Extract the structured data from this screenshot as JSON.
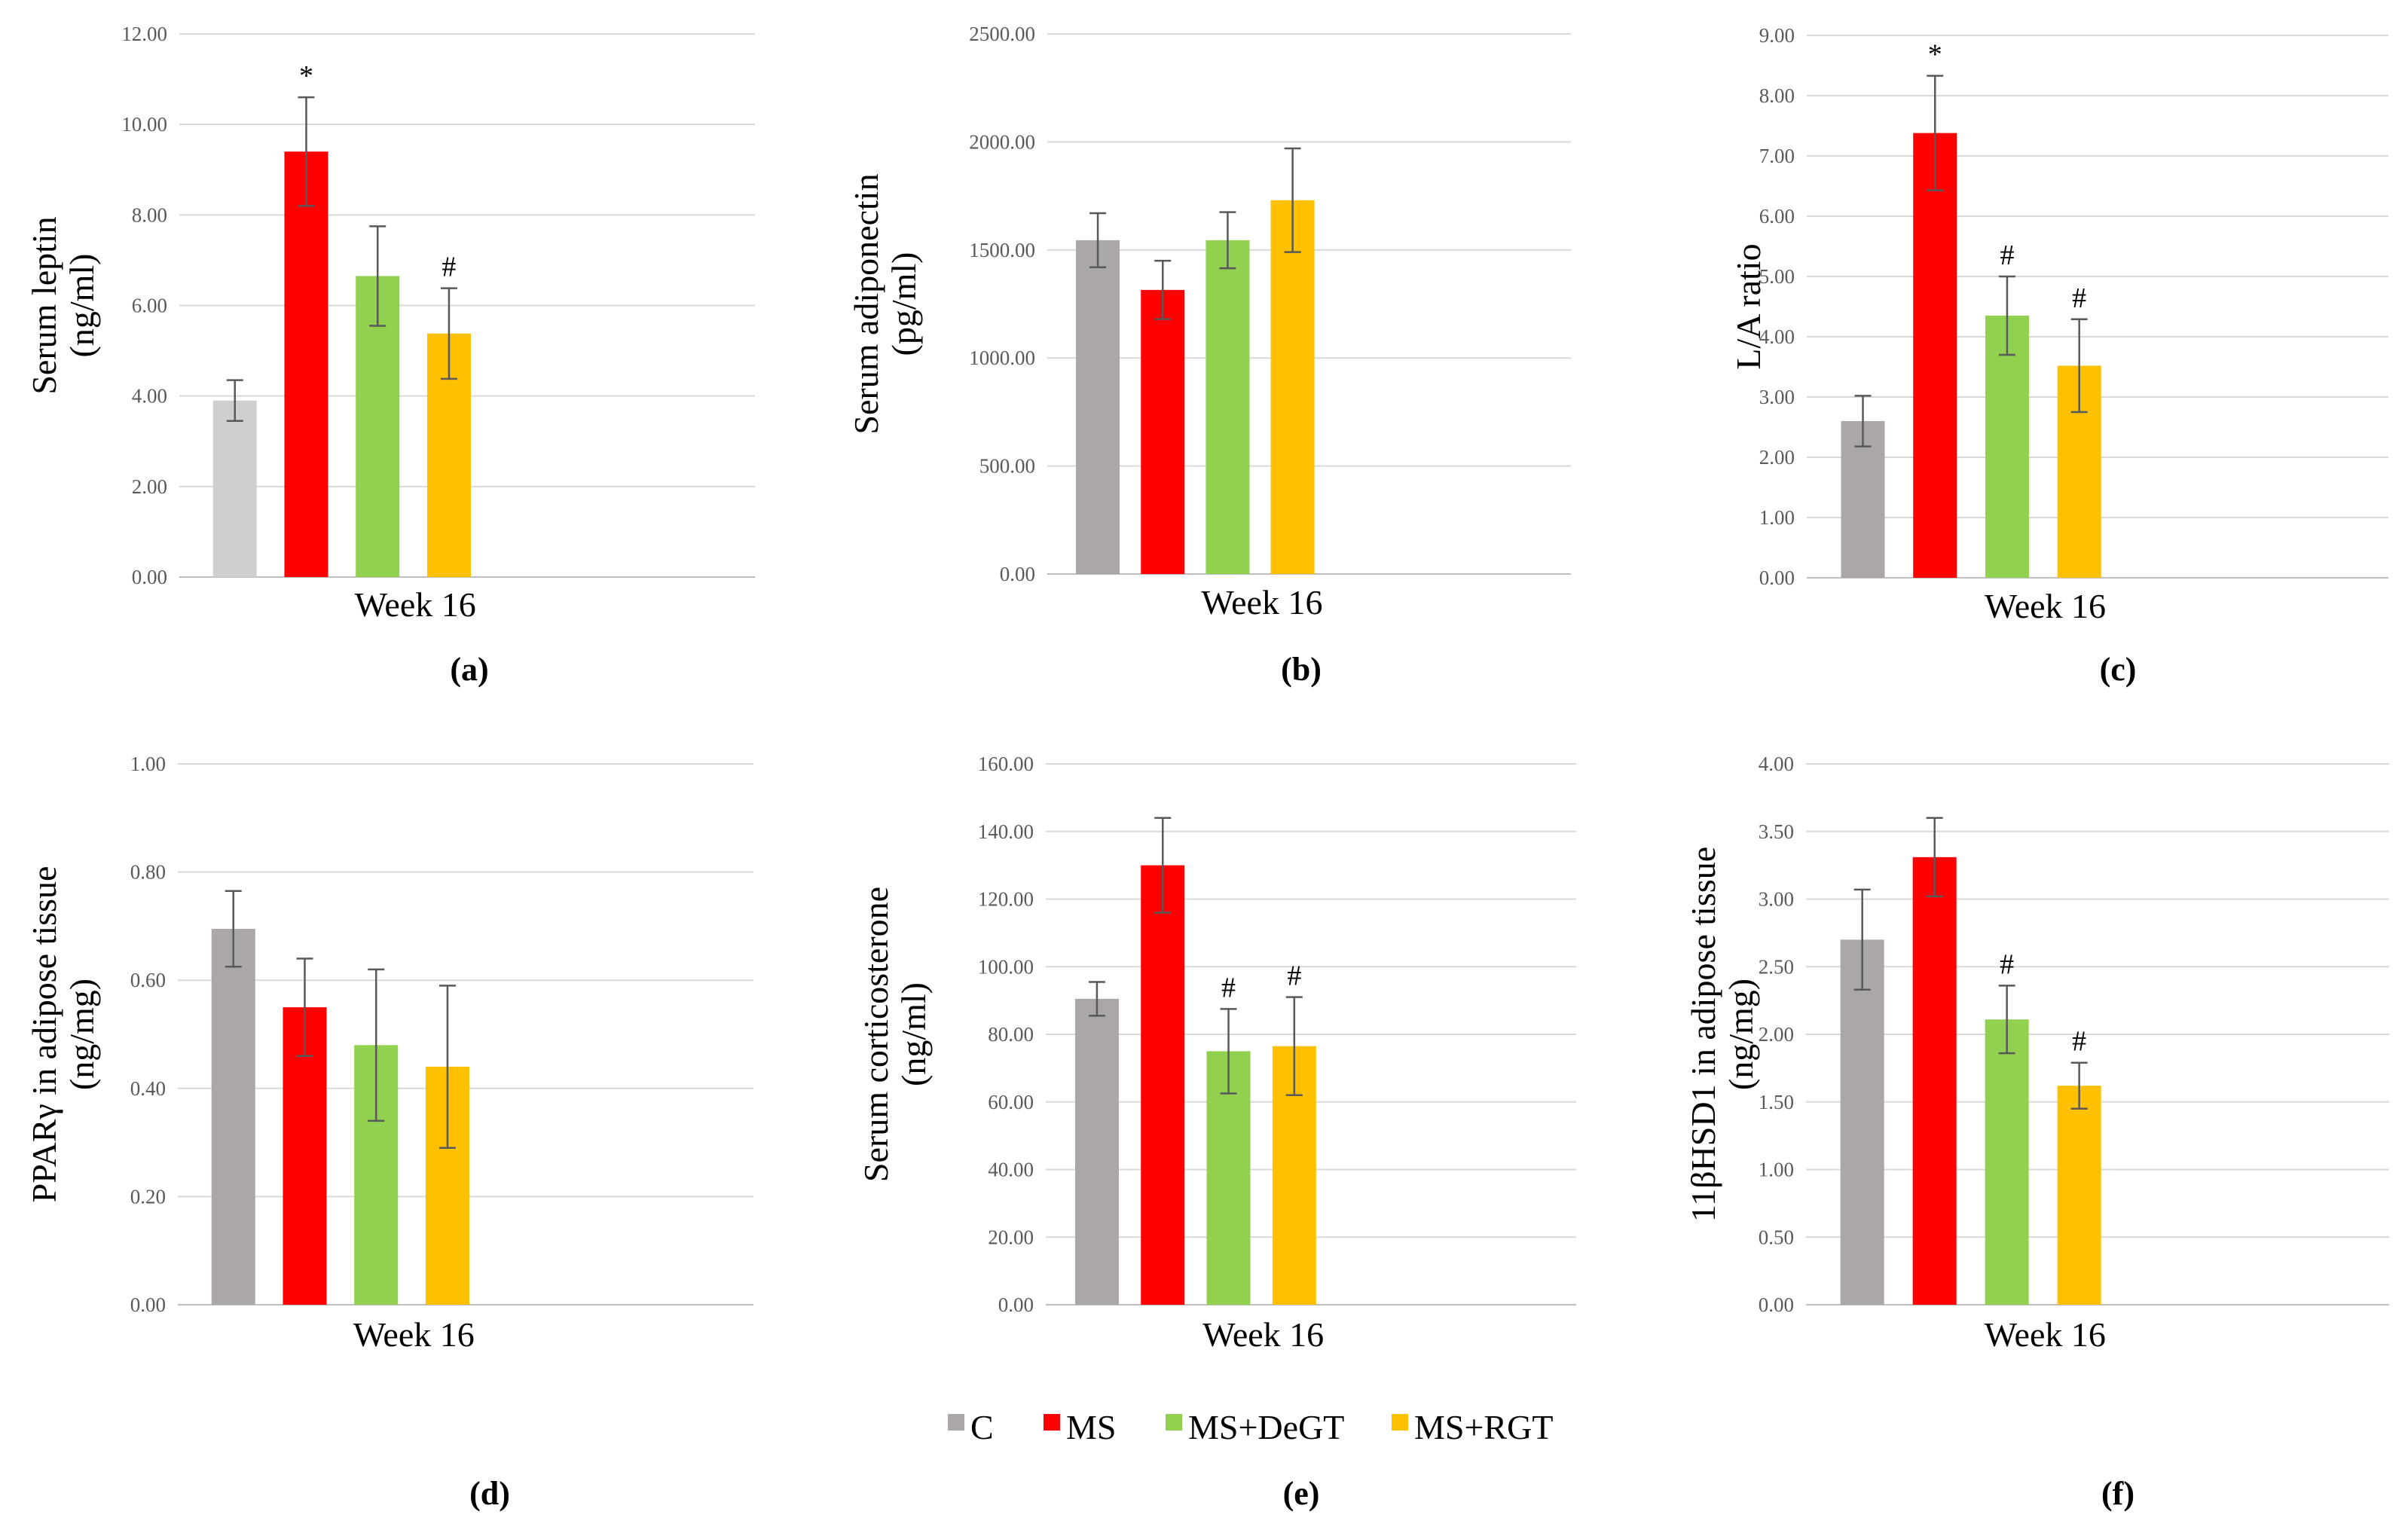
{
  "legend": {
    "items": [
      {
        "label": "C",
        "color": "#aba7a7"
      },
      {
        "label": "MS",
        "color": "#ff0000"
      },
      {
        "label": "MS+DeGT",
        "color": "#92d050"
      },
      {
        "label": "MS+RGT",
        "color": "#ffc000"
      }
    ]
  },
  "chart_data": [
    {
      "panel": "(a)",
      "type": "bar",
      "xlabel": "Week 16",
      "ylabel": [
        "Serum leptin",
        "(ng/ml)"
      ],
      "ylim": [
        0,
        12
      ],
      "yticks": [
        "0.00",
        "2.00",
        "4.00",
        "6.00",
        "8.00",
        "10.00",
        "12.00"
      ],
      "bar_colors": [
        "#d0cece",
        "#ff0000",
        "#92d050",
        "#ffc000"
      ],
      "series": [
        {
          "name": "C",
          "value": 3.9,
          "error": 0.45,
          "sig": ""
        },
        {
          "name": "MS",
          "value": 9.4,
          "error": 1.2,
          "sig": "*"
        },
        {
          "name": "MS+DeGT",
          "value": 6.65,
          "error": 1.1,
          "sig": ""
        },
        {
          "name": "MS+RGT",
          "value": 5.38,
          "error": 1.0,
          "sig": "#"
        }
      ]
    },
    {
      "panel": "(b)",
      "type": "bar",
      "xlabel": "Week 16",
      "ylabel": [
        "Serum adiponectin",
        "(pg/ml)"
      ],
      "ylim": [
        0,
        2500
      ],
      "yticks": [
        "0.00",
        "500.00",
        "1000.00",
        "1500.00",
        "2000.00",
        "2500.00"
      ],
      "bar_colors": [
        "#aba7a7",
        "#ff0000",
        "#92d050",
        "#ffc000"
      ],
      "series": [
        {
          "name": "C",
          "value": 1545,
          "error": 125,
          "sig": ""
        },
        {
          "name": "MS",
          "value": 1315,
          "error": 135,
          "sig": ""
        },
        {
          "name": "MS+DeGT",
          "value": 1545,
          "error": 130,
          "sig": ""
        },
        {
          "name": "MS+RGT",
          "value": 1730,
          "error": 240,
          "sig": ""
        }
      ]
    },
    {
      "panel": "(c)",
      "type": "bar",
      "xlabel": "Week 16",
      "ylabel": [
        "L/A ratio"
      ],
      "ylim": [
        0,
        9
      ],
      "yticks": [
        "0.00",
        "1.00",
        "2.00",
        "3.00",
        "4.00",
        "5.00",
        "6.00",
        "7.00",
        "8.00",
        "9.00"
      ],
      "bar_colors": [
        "#aba7a7",
        "#ff0000",
        "#92d050",
        "#ffc000"
      ],
      "series": [
        {
          "name": "C",
          "value": 2.6,
          "error": 0.42,
          "sig": ""
        },
        {
          "name": "MS",
          "value": 7.38,
          "error": 0.95,
          "sig": "*"
        },
        {
          "name": "MS+DeGT",
          "value": 4.35,
          "error": 0.65,
          "sig": "#"
        },
        {
          "name": "MS+RGT",
          "value": 3.52,
          "error": 0.77,
          "sig": "#"
        }
      ]
    },
    {
      "panel": "(d)",
      "type": "bar",
      "xlabel": "Week 16",
      "ylabel": [
        "PPARγ in adipose tissue",
        "(ng/mg)"
      ],
      "ylim": [
        0,
        1
      ],
      "yticks": [
        "0.00",
        "0.20",
        "0.40",
        "0.60",
        "0.80",
        "1.00"
      ],
      "bar_colors": [
        "#aba7a7",
        "#ff0000",
        "#92d050",
        "#ffc000"
      ],
      "series": [
        {
          "name": "C",
          "value": 0.695,
          "error": 0.07,
          "sig": ""
        },
        {
          "name": "MS",
          "value": 0.55,
          "error": 0.09,
          "sig": ""
        },
        {
          "name": "MS+DeGT",
          "value": 0.48,
          "error": 0.14,
          "sig": ""
        },
        {
          "name": "MS+RGT",
          "value": 0.44,
          "error": 0.15,
          "sig": ""
        }
      ]
    },
    {
      "panel": "(e)",
      "type": "bar",
      "xlabel": "Week 16",
      "ylabel": [
        "Serum corticosterone",
        "(ng/ml)"
      ],
      "ylim": [
        0,
        160
      ],
      "yticks": [
        "0.00",
        "20.00",
        "40.00",
        "60.00",
        "80.00",
        "100.00",
        "120.00",
        "140.00",
        "160.00"
      ],
      "bar_colors": [
        "#aba7a7",
        "#ff0000",
        "#92d050",
        "#ffc000"
      ],
      "series": [
        {
          "name": "C",
          "value": 90.5,
          "error": 5,
          "sig": ""
        },
        {
          "name": "MS",
          "value": 130,
          "error": 14,
          "sig": ""
        },
        {
          "name": "MS+DeGT",
          "value": 75,
          "error": 12.5,
          "sig": "#"
        },
        {
          "name": "MS+RGT",
          "value": 76.5,
          "error": 14.5,
          "sig": "#"
        }
      ]
    },
    {
      "panel": "(f)",
      "type": "bar",
      "xlabel": "Week 16",
      "ylabel": [
        "11βHSD1 in adipose tissue",
        "(ng/mg)"
      ],
      "ylim": [
        0,
        4
      ],
      "yticks": [
        "0.00",
        "0.50",
        "1.00",
        "1.50",
        "2.00",
        "2.50",
        "3.00",
        "3.50",
        "4.00"
      ],
      "bar_colors": [
        "#aba7a7",
        "#ff0000",
        "#92d050",
        "#ffc000"
      ],
      "series": [
        {
          "name": "C",
          "value": 2.7,
          "error": 0.37,
          "sig": ""
        },
        {
          "name": "MS",
          "value": 3.31,
          "error": 0.29,
          "sig": ""
        },
        {
          "name": "MS+DeGT",
          "value": 2.11,
          "error": 0.25,
          "sig": "#"
        },
        {
          "name": "MS+RGT",
          "value": 1.62,
          "error": 0.17,
          "sig": "#"
        }
      ]
    }
  ]
}
